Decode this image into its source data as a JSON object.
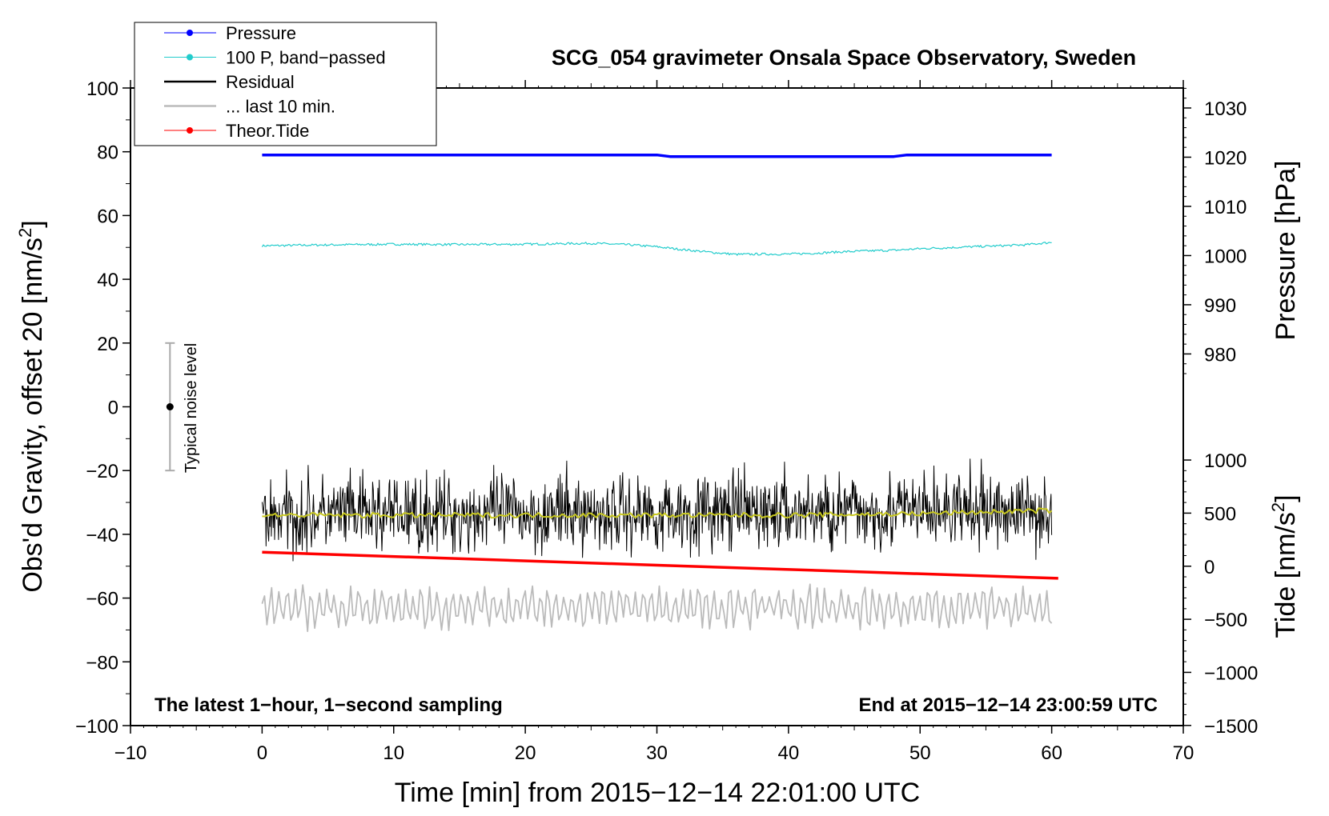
{
  "chart_data": {
    "type": "line",
    "title": "SCG_054 gravimeter Onsala Space Observatory, Sweden",
    "xlabel": "Time [min] from 2015−12−14 22:01:00 UTC",
    "ylabel": "Obs'd Gravity, offset 20 [nm/s",
    "ylabel_sup": "2",
    "ylabel_end": "]",
    "xlim": [
      -10,
      70
    ],
    "ylim": [
      -100,
      100
    ],
    "x_ticks": [
      -10,
      0,
      10,
      20,
      30,
      40,
      50,
      60,
      70
    ],
    "y_ticks": [
      -100,
      -80,
      -60,
      -40,
      -20,
      0,
      20,
      40,
      60,
      80,
      100
    ],
    "x_tick_labels": [
      "−10",
      "0",
      "10",
      "20",
      "30",
      "40",
      "50",
      "60",
      "70"
    ],
    "y_tick_labels": [
      "−100",
      "−80",
      "−60",
      "−40",
      "−20",
      "0",
      "20",
      "40",
      "60",
      "80",
      "100"
    ],
    "pressure_axis": {
      "label": "Pressure [hPa]",
      "ticks": [
        980,
        990,
        1000,
        1010,
        1020,
        1030
      ],
      "tick_labels": [
        "980",
        "990",
        "1000",
        "1010",
        "1020",
        "1030"
      ],
      "ref_value": 1020,
      "ref_left": 78.3,
      "left_per_unit": 1.543
    },
    "tide_axis": {
      "label": "Tide [nm/s",
      "label_sup": "2",
      "label_end": "]",
      "ticks": [
        -1500,
        -1000,
        -500,
        0,
        500,
        1000
      ],
      "tick_labels": [
        "−1500",
        "−1000",
        "−500",
        "0",
        "500",
        "1000"
      ],
      "ref_value": 0,
      "ref_left": -50.0,
      "left_per_unit": 0.0333
    },
    "series": [
      {
        "name": "Pressure",
        "color": "#0000ff",
        "x": [
          0,
          30.5,
          31,
          48,
          48.5,
          60
        ],
        "y": [
          79.0,
          79.0,
          78.5,
          78.5,
          79.0,
          79.0
        ]
      },
      {
        "name": "100 P, band−passed",
        "color": "#22cccc",
        "x": [
          0,
          5,
          10,
          15,
          20,
          25,
          28,
          30,
          32,
          34,
          36,
          38,
          40,
          42,
          44,
          46,
          48,
          50,
          52,
          54,
          56,
          58,
          60
        ],
        "y": [
          50.5,
          50.8,
          51.0,
          50.9,
          51.0,
          51.3,
          50.8,
          50.2,
          49.3,
          48.5,
          47.8,
          47.9,
          47.9,
          48.2,
          48.6,
          48.9,
          49.1,
          49.6,
          49.9,
          50.2,
          50.5,
          50.8,
          51.6
        ]
      },
      {
        "name": "Residual",
        "color": "#000000",
        "x": [
          0,
          60
        ],
        "y": [
          -34,
          -32.5
        ],
        "noise_amplitude": 6
      },
      {
        "name": "Residual smoothed",
        "color": "#c8c820",
        "x": [
          0,
          10,
          20,
          30,
          40,
          50,
          60
        ],
        "y": [
          -34,
          -34,
          -34,
          -34,
          -34,
          -33.5,
          -32.5
        ]
      },
      {
        "name": "... last 10 min.",
        "color": "#bbbbbb",
        "x": [
          0,
          60
        ],
        "y": [
          -63,
          -63
        ],
        "noise_amplitude": 6
      },
      {
        "name": "Theor.Tide",
        "color": "#ff0000",
        "x": [
          0,
          60.5
        ],
        "y": [
          -45.6,
          -53.8
        ]
      }
    ],
    "legend": [
      {
        "label": "Pressure",
        "color": "#0000ff",
        "marker": true,
        "line": "thin"
      },
      {
        "label": "100 P, band−passed",
        "color": "#22cccc",
        "marker": true,
        "line": "thin"
      },
      {
        "label": "Residual",
        "color": "#000000",
        "marker": false,
        "line": "thick"
      },
      {
        "label": "... last 10 min.",
        "color": "#bbbbbb",
        "marker": false,
        "line": "thick"
      },
      {
        "label": "Theor.Tide",
        "color": "#ff0000",
        "marker": true,
        "line": "thin"
      }
    ],
    "legend_position": "top-left",
    "annotations": {
      "bottom_left": "The latest 1−hour, 1−second sampling",
      "bottom_right": "End at 2015−12−14 23:00:59 UTC",
      "noise_label": "Typical noise level",
      "noise_range": [
        -20,
        20
      ],
      "noise_x": -7
    }
  }
}
